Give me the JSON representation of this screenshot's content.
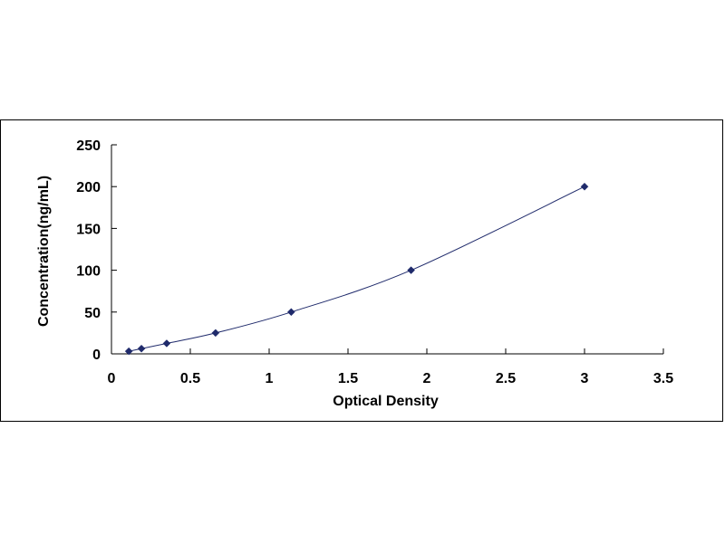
{
  "chart_data": {
    "type": "scatter",
    "title": "",
    "xlabel": "Optical Density",
    "ylabel": "Concentration(ng/mL)",
    "xlim": [
      0,
      3.5
    ],
    "ylim": [
      0,
      250
    ],
    "x_ticks": [
      "0",
      "0.5",
      "1",
      "1.5",
      "2",
      "2.5",
      "3",
      "3.5"
    ],
    "y_ticks": [
      "0",
      "50",
      "100",
      "150",
      "200",
      "250"
    ],
    "grid": false,
    "legend": "none",
    "trendline": "smooth curve through points",
    "series": [
      {
        "color": "#1f2a6b",
        "marker": "diamond",
        "points": [
          {
            "x": 0.11,
            "y": 3.1
          },
          {
            "x": 0.19,
            "y": 6.25
          },
          {
            "x": 0.35,
            "y": 12.5
          },
          {
            "x": 0.66,
            "y": 25
          },
          {
            "x": 1.14,
            "y": 50
          },
          {
            "x": 1.9,
            "y": 100
          },
          {
            "x": 3.0,
            "y": 200
          }
        ]
      }
    ]
  }
}
